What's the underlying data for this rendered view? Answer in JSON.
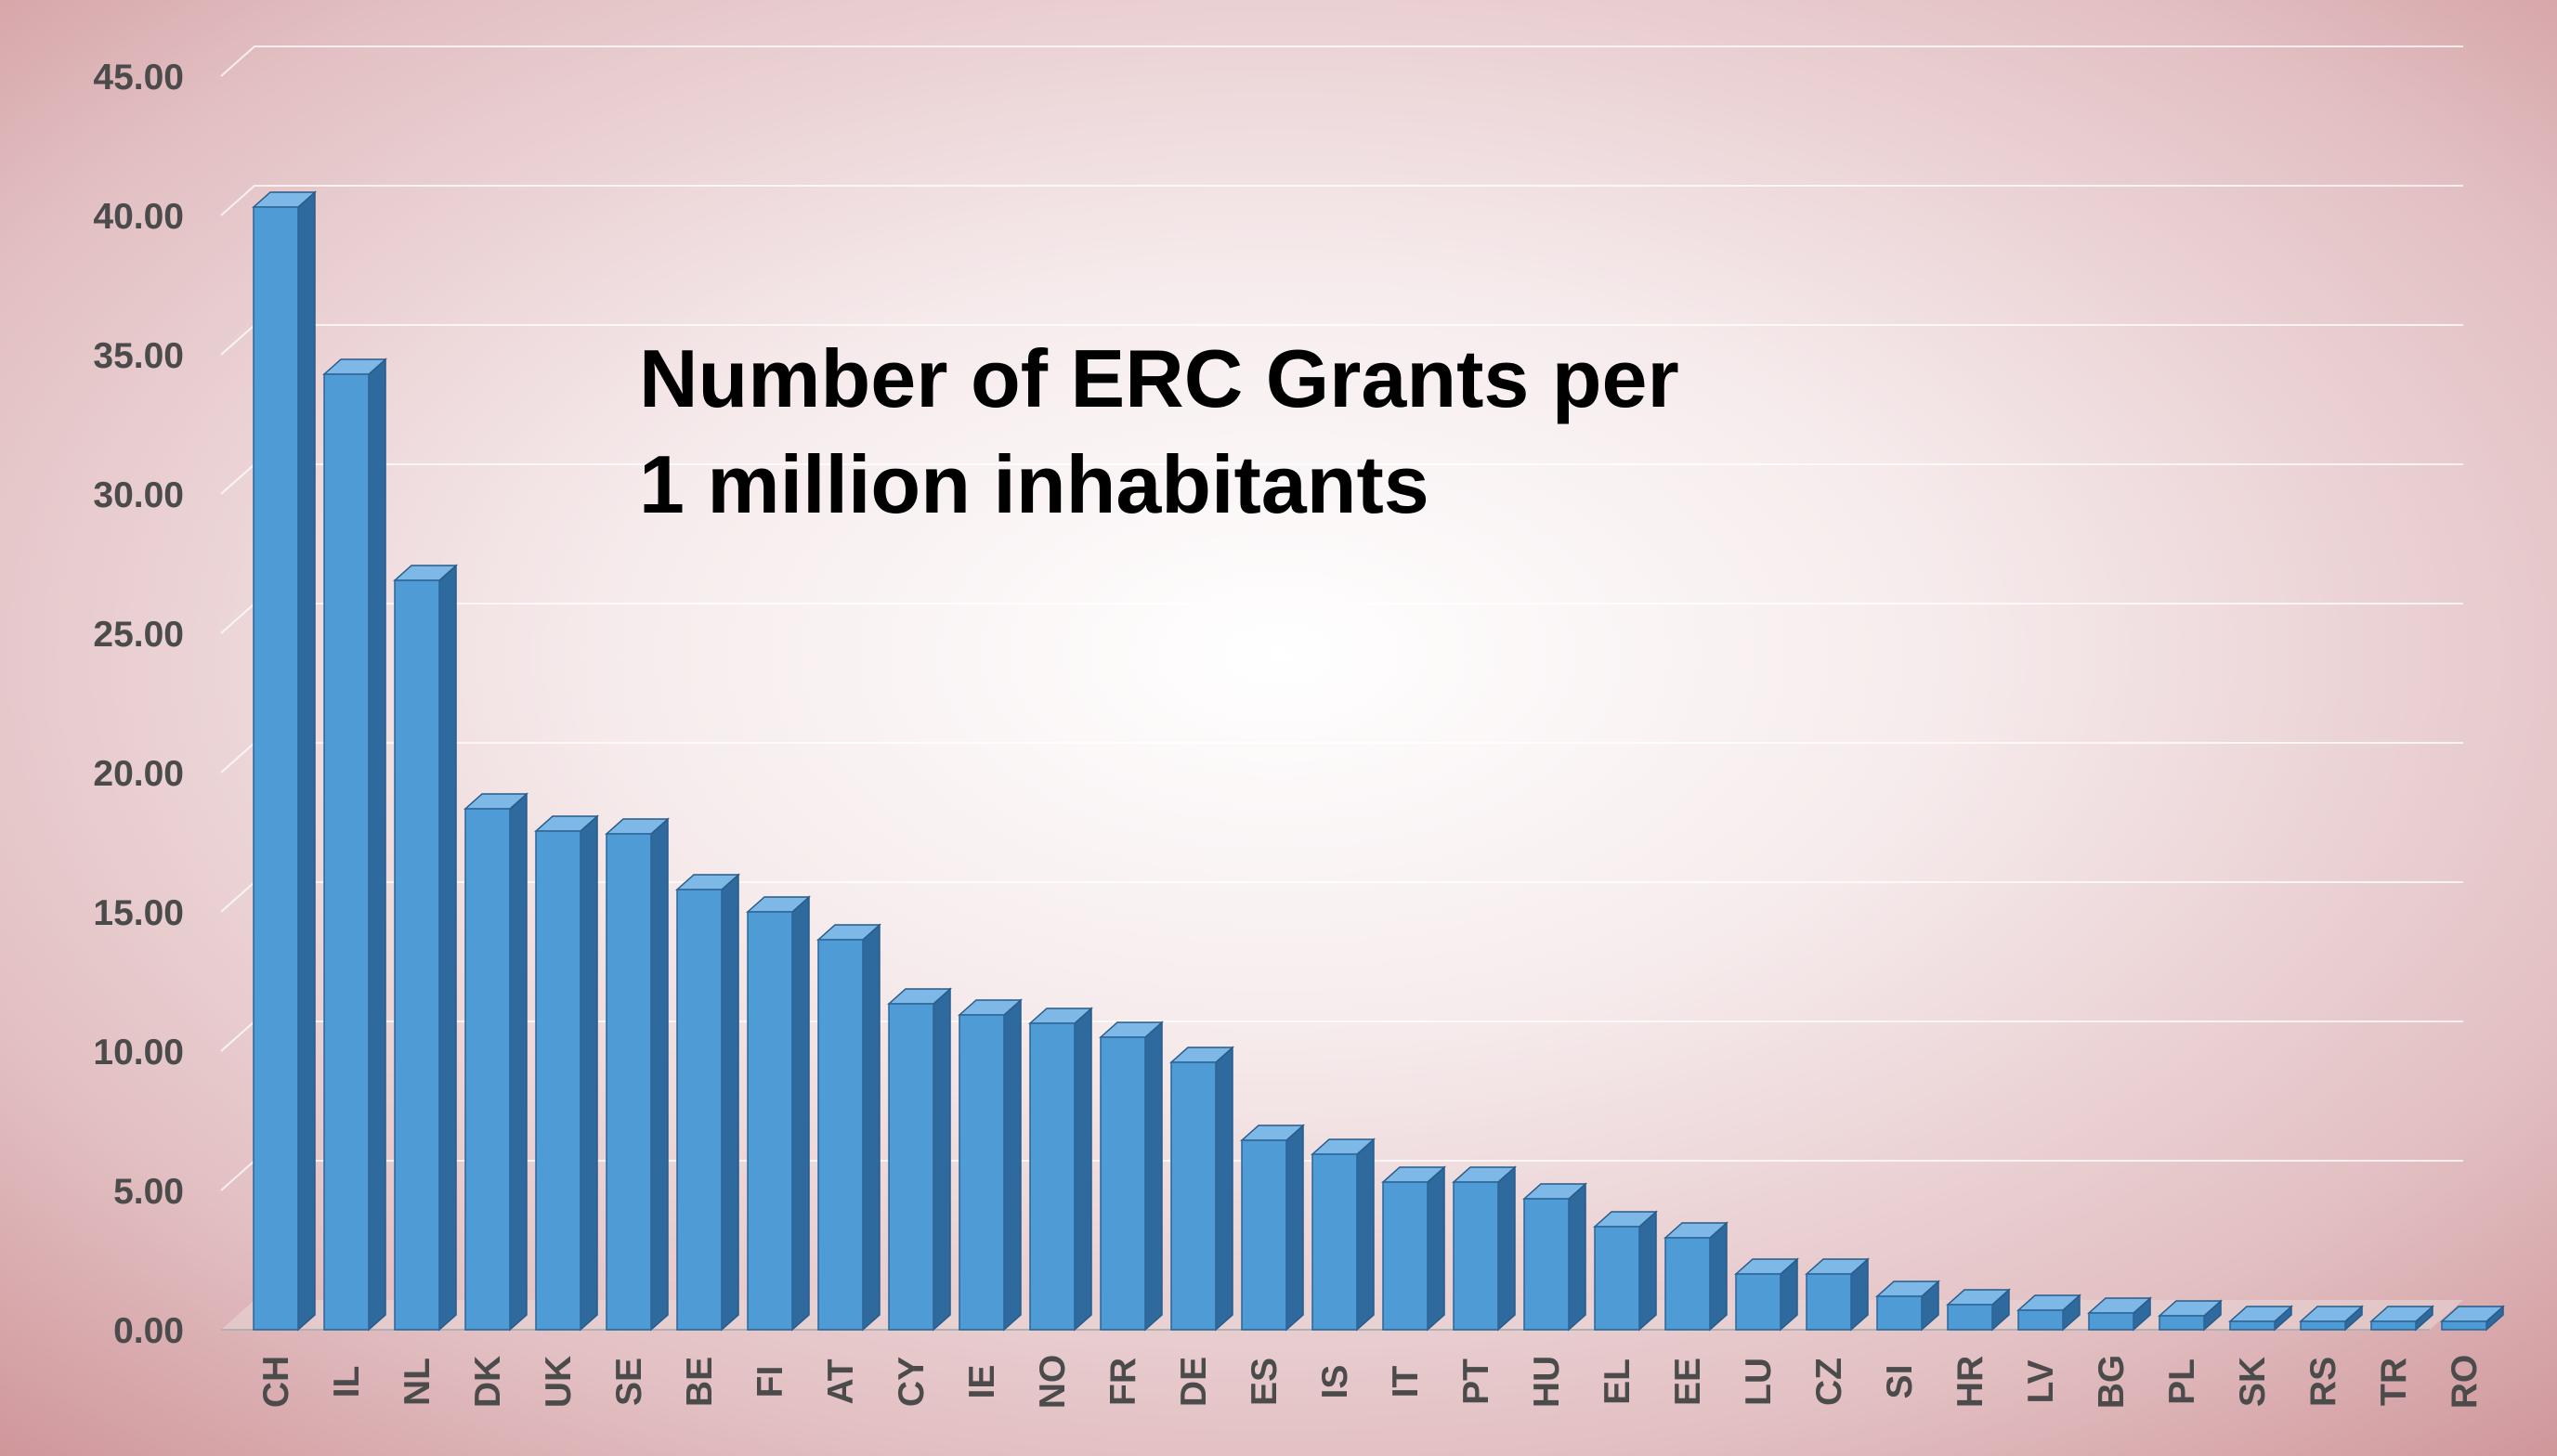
{
  "chart_data": {
    "type": "bar",
    "title_lines": [
      "Number of ERC Grants per",
      "1 million inhabitants"
    ],
    "xlabel": "",
    "ylabel": "",
    "ylim": [
      0,
      45
    ],
    "yticks": [
      "0.00",
      "5.00",
      "10.00",
      "15.00",
      "20.00",
      "25.00",
      "30.00",
      "35.00",
      "40.00",
      "45.00"
    ],
    "grid": true,
    "bar_style": "3d",
    "colors": {
      "bar_front": "#4f9bd6",
      "bar_side": "#2f6a9e",
      "bar_top": "#7db8e6",
      "background_center": "#ffffff",
      "background_edge": "#d39ea2"
    },
    "categories": [
      "CH",
      "IL",
      "NL",
      "DK",
      "UK",
      "SE",
      "BE",
      "FI",
      "AT",
      "CY",
      "IE",
      "NO",
      "FR",
      "DE",
      "ES",
      "IS",
      "IT",
      "PT",
      "HU",
      "EL",
      "EE",
      "LU",
      "CZ",
      "SI",
      "HR",
      "LV",
      "BG",
      "PL",
      "SK",
      "RS",
      "TR",
      "RO"
    ],
    "values": [
      40.3,
      34.3,
      26.9,
      18.7,
      17.9,
      17.8,
      15.8,
      15.0,
      14.0,
      11.7,
      11.3,
      11.0,
      10.5,
      9.6,
      6.8,
      6.3,
      5.3,
      5.3,
      4.7,
      3.7,
      3.3,
      2.0,
      2.0,
      1.2,
      0.9,
      0.7,
      0.6,
      0.5,
      0.3,
      0.3,
      0.3,
      0.3
    ]
  }
}
